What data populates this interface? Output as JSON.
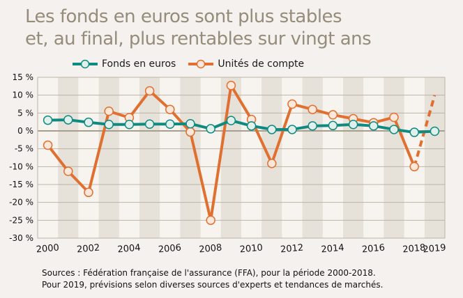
{
  "title": [
    "Les fonds en euros sont plus stables",
    "et, au final, plus rentables sur vingt ans"
  ],
  "colors": {
    "fonds": "#0f8a80",
    "uc": "#e07030",
    "background": "#f4f1ee",
    "stripe": "#e6e1d9",
    "title": "#958c7a"
  },
  "sources": [
    "Sources : Fédération française de l'assurance (FFA), pour la période 2000-2018.",
    "Pour 2019, prévisions selon diverses sources d'experts et tendances de marchés."
  ],
  "chart_data": {
    "type": "line",
    "x": [
      2000,
      2001,
      2002,
      2003,
      2004,
      2005,
      2006,
      2007,
      2008,
      2009,
      2010,
      2011,
      2012,
      2013,
      2014,
      2015,
      2016,
      2017,
      2018,
      2019
    ],
    "x_tick_labels": [
      "2000",
      "2002",
      "2004",
      "2006",
      "2008",
      "2010",
      "2012",
      "2014",
      "2016",
      "2018",
      "2019"
    ],
    "y_tick_labels": [
      "15 %",
      "10 %",
      "5 %",
      "0 %",
      "-5 %",
      "-10 %",
      "-15 %",
      "-20 %",
      "-25 %",
      "-30 %"
    ],
    "ylim": [
      -30,
      15
    ],
    "grid": true,
    "legend_placement": "top",
    "series": [
      {
        "name": "Fonds en euros",
        "values": [
          3.0,
          3.1,
          2.4,
          1.8,
          1.8,
          1.9,
          1.9,
          2.0,
          0.6,
          2.9,
          1.4,
          0.4,
          0.4,
          1.4,
          1.5,
          1.8,
          1.4,
          0.4,
          -0.4,
          -0.1
        ]
      },
      {
        "name": "Unités de compte",
        "values": [
          -4.0,
          -11.3,
          -17.2,
          5.5,
          3.7,
          11.2,
          6.0,
          -0.3,
          -25.0,
          12.7,
          3.2,
          -9.1,
          7.5,
          6.0,
          4.5,
          3.4,
          2.3,
          3.8,
          -10.0,
          10.0
        ],
        "note_2019": "dashed (prévision)"
      }
    ]
  }
}
